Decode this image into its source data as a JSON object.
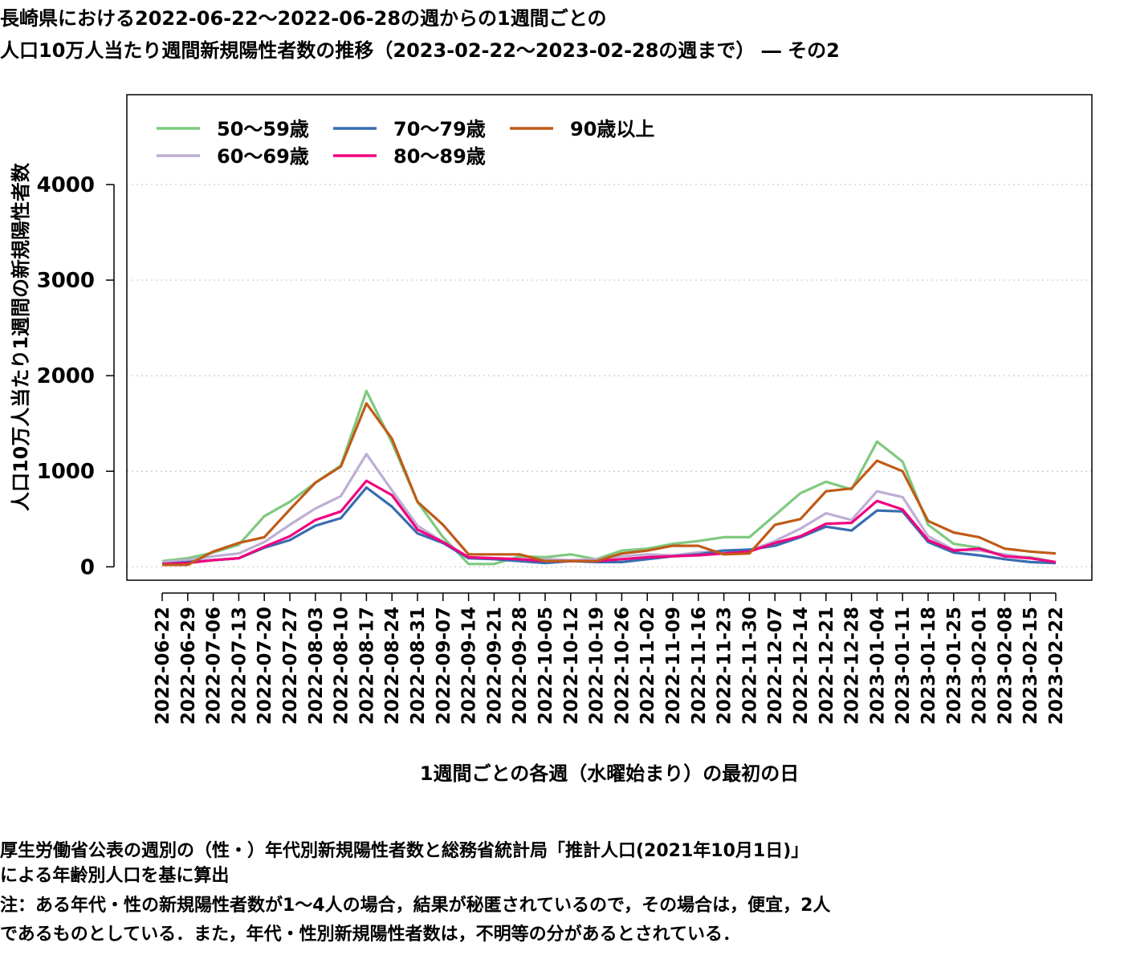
{
  "title_line1": "長崎県における2022-06-22～2022-06-28の週からの1週間ごとの",
  "title_line2": "人口10万人当たり週間新規陽性者数の推移（2023-02-22～2023-02-28の週まで） ― その2",
  "notes": [
    "厚生労働省公表の週別の（性・）年代別新規陽性者数と総務省統計局「推計人口(2021年10月1日)」",
    "による年齢別人口を基に算出",
    "注：ある年代・性の新規陽性者数が1～4人の場合，結果が秘匿されているので，その場合は，便宜，2人",
    "であるものとしている．また，年代・性別新規陽性者数は，不明等の分があるとされている．"
  ],
  "chart_data": {
    "type": "line",
    "xlabel": "1週間ごとの各週（水曜始まり）の最初の日",
    "ylabel": "人口10万人当たり1週間の新規陽性者数",
    "ylim": [
      -140,
      4940
    ],
    "yticks": [
      0,
      1000,
      2000,
      3000,
      4000
    ],
    "grid": "horizontal dotted",
    "legend": "top-left",
    "x": [
      "2022-06-22",
      "2022-06-29",
      "2022-07-06",
      "2022-07-13",
      "2022-07-20",
      "2022-07-27",
      "2022-08-03",
      "2022-08-10",
      "2022-08-17",
      "2022-08-24",
      "2022-08-31",
      "2022-09-07",
      "2022-09-14",
      "2022-09-21",
      "2022-09-28",
      "2022-10-05",
      "2022-10-12",
      "2022-10-19",
      "2022-10-26",
      "2022-11-02",
      "2022-11-09",
      "2022-11-16",
      "2022-11-23",
      "2022-11-30",
      "2022-12-07",
      "2022-12-14",
      "2022-12-21",
      "2022-12-28",
      "2023-01-04",
      "2023-01-11",
      "2023-01-18",
      "2023-01-25",
      "2023-02-01",
      "2023-02-08",
      "2023-02-15",
      "2023-02-22"
    ],
    "series": [
      {
        "name": "50～59歳",
        "color": "#7fc97f",
        "values": [
          60,
          90,
          150,
          230,
          530,
          680,
          880,
          1060,
          1840,
          1300,
          680,
          310,
          30,
          30,
          110,
          100,
          130,
          80,
          170,
          190,
          240,
          270,
          310,
          310,
          540,
          770,
          890,
          810,
          1310,
          1100,
          440,
          240,
          200,
          110,
          100,
          50
        ]
      },
      {
        "name": "60～69歳",
        "color": "#beaed4",
        "values": [
          50,
          70,
          110,
          140,
          260,
          440,
          610,
          740,
          1180,
          800,
          430,
          260,
          100,
          80,
          80,
          80,
          70,
          80,
          110,
          130,
          120,
          150,
          170,
          170,
          270,
          400,
          560,
          490,
          790,
          730,
          320,
          180,
          170,
          130,
          90,
          50
        ]
      },
      {
        "name": "70～79歳",
        "color": "#386cb0",
        "values": [
          30,
          50,
          70,
          90,
          200,
          280,
          430,
          510,
          830,
          630,
          350,
          250,
          90,
          80,
          60,
          40,
          60,
          50,
          50,
          80,
          110,
          130,
          170,
          180,
          220,
          310,
          420,
          380,
          590,
          580,
          260,
          150,
          120,
          80,
          50,
          40
        ]
      },
      {
        "name": "80～89歳",
        "color": "#f0027f",
        "values": [
          30,
          40,
          70,
          90,
          210,
          320,
          490,
          580,
          900,
          750,
          390,
          260,
          100,
          90,
          80,
          60,
          60,
          60,
          80,
          100,
          110,
          120,
          140,
          160,
          250,
          320,
          450,
          460,
          690,
          600,
          280,
          170,
          190,
          110,
          90,
          50
        ]
      },
      {
        "name": "90歳以上",
        "color": "#bf5b17",
        "values": [
          20,
          20,
          160,
          250,
          310,
          600,
          880,
          1050,
          1710,
          1340,
          680,
          440,
          130,
          130,
          130,
          60,
          60,
          60,
          140,
          170,
          220,
          220,
          130,
          140,
          440,
          500,
          790,
          820,
          1110,
          1000,
          480,
          360,
          310,
          190,
          160,
          140
        ]
      }
    ]
  }
}
